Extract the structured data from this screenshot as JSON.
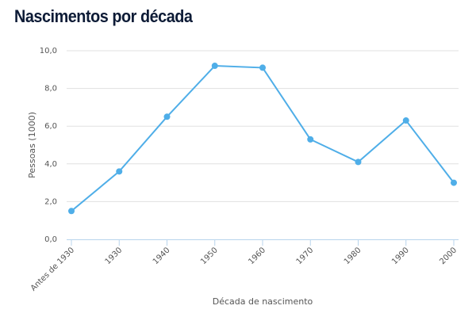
{
  "chart_data": {
    "type": "line",
    "title": "Nascimentos por década",
    "xlabel": "Década de nascimento",
    "ylabel": "Pessoas (1000)",
    "categories": [
      "Antes de 1930",
      "1930",
      "1940",
      "1950",
      "1960",
      "1970",
      "1980",
      "1990",
      "2000"
    ],
    "series": [
      {
        "values": [
          1.5,
          3.6,
          6.5,
          9.2,
          9.1,
          5.3,
          4.1,
          6.3,
          3.0
        ]
      }
    ],
    "ylim": [
      0,
      10
    ],
    "yticks": [
      "0,0",
      "2,0",
      "4,0",
      "6,0",
      "8,0",
      "10,0"
    ],
    "grid": true,
    "colors": {
      "line": "#4faee8",
      "title": "#0d1b36",
      "axis": "#b8d4ec",
      "grid": "#e0e0e0"
    }
  }
}
